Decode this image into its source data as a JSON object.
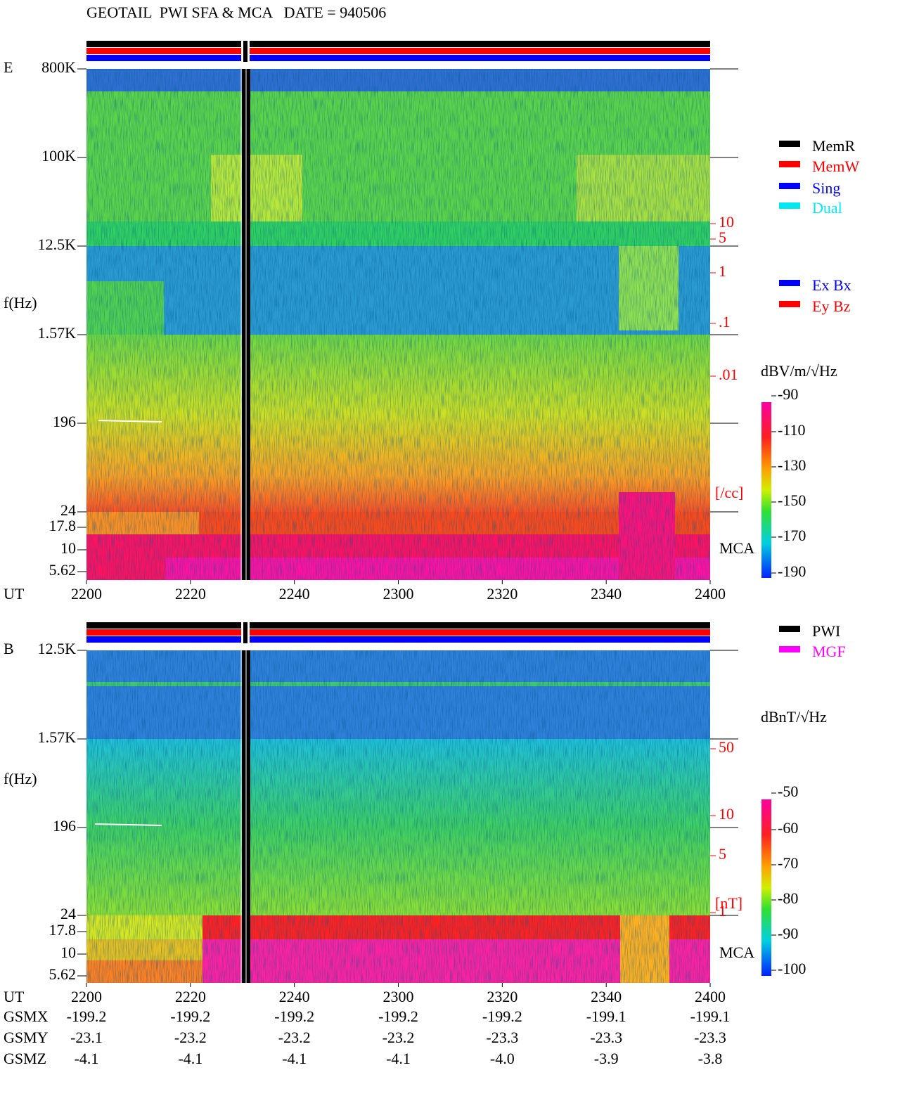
{
  "header": {
    "title": "GEOTAIL  PWI SFA & MCA   DATE = 940506"
  },
  "panels": [
    {
      "label": "E",
      "y_axis_label": "f(Hz)",
      "x_axis_label": "UT",
      "mca_label": "MCA",
      "y_ticks": [
        "800K",
        "100K",
        "12.5K",
        "1.57K",
        "196",
        "24",
        "17.8",
        "10",
        "5.62"
      ],
      "right_labels": [
        "10",
        "5",
        "1",
        ".1",
        ".01",
        "[/cc]"
      ],
      "x_ticks": [
        "2200",
        "2220",
        "2240",
        "2300",
        "2320",
        "2340",
        "2400"
      ],
      "legend": [
        {
          "name": "MemR",
          "color": "#000000"
        },
        {
          "name": "MemW",
          "color": "#ff0000"
        },
        {
          "name": "Sing",
          "color": "#0000ff"
        },
        {
          "name": "Dual",
          "color": "#00e8f0"
        }
      ],
      "legend2": [
        {
          "name": "Ex Bx",
          "color": "#0000ff"
        },
        {
          "name": "Ey Bz",
          "color": "#ff0000"
        }
      ],
      "colorbar": {
        "label": "dBV/m/√Hz",
        "ticks": [
          "-90",
          "-110",
          "-130",
          "-150",
          "-170",
          "-190"
        ]
      }
    },
    {
      "label": "B",
      "y_axis_label": "f(Hz)",
      "x_axis_label": "UT",
      "mca_label": "MCA",
      "y_ticks": [
        "12.5K",
        "1.57K",
        "196",
        "24",
        "17.8",
        "10",
        "5.62"
      ],
      "right_labels": [
        "50",
        "10",
        "5",
        "1",
        "[nT]"
      ],
      "x_ticks": [
        "2200",
        "2220",
        "2240",
        "2300",
        "2320",
        "2340",
        "2400"
      ],
      "legend": [
        {
          "name": "PWI",
          "color": "#000000"
        },
        {
          "name": "MGF",
          "color": "#ff00ff"
        }
      ],
      "colorbar": {
        "label": "dBnT/√Hz",
        "ticks": [
          "-50",
          "-60",
          "-70",
          "-80",
          "-90",
          "-100"
        ]
      }
    }
  ],
  "orbit": {
    "rows": [
      {
        "label": "GSMX",
        "values": [
          "-199.2",
          "-199.2",
          "-199.2",
          "-199.2",
          "-199.2",
          "-199.1",
          "-199.1"
        ]
      },
      {
        "label": "GSMY",
        "values": [
          "-23.1",
          "-23.2",
          "-23.2",
          "-23.2",
          "-23.3",
          "-23.3",
          "-23.3"
        ]
      },
      {
        "label": "GSMZ",
        "values": [
          "-4.1",
          "-4.1",
          "-4.1",
          "-4.1",
          "-4.0",
          "-3.9",
          "-3.8"
        ]
      }
    ]
  }
}
